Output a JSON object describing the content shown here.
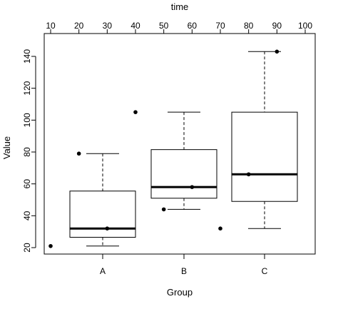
{
  "chart_data": {
    "type": "boxplot",
    "xlabel": "Group",
    "ylabel": "Value",
    "top_axis_label": "time",
    "ylim": [
      16,
      147
    ],
    "yticks": [
      20,
      40,
      60,
      80,
      100,
      120,
      140
    ],
    "top_axis_range": [
      10,
      100
    ],
    "top_ticks": [
      10,
      20,
      30,
      40,
      50,
      60,
      70,
      80,
      90,
      100
    ],
    "groups": [
      {
        "label": "A",
        "whisker_low": 21,
        "q1": 26.5,
        "median": 32,
        "q3": 55.5,
        "whisker_high": 79
      },
      {
        "label": "B",
        "whisker_low": 44,
        "q1": 51,
        "median": 58,
        "q3": 81.5,
        "whisker_high": 105
      },
      {
        "label": "C",
        "whisker_low": 32,
        "q1": 49,
        "median": 66,
        "q3": 105,
        "whisker_high": 143
      }
    ],
    "points_time_axis": [
      {
        "time": 10,
        "value": 21
      },
      {
        "time": 20,
        "value": 79
      },
      {
        "time": 30,
        "value": 32
      },
      {
        "time": 40,
        "value": 105
      },
      {
        "time": 50,
        "value": 44
      },
      {
        "time": 60,
        "value": 58
      },
      {
        "time": 70,
        "value": 32
      },
      {
        "time": 80,
        "value": 66
      },
      {
        "time": 90,
        "value": 143
      }
    ],
    "grid": false,
    "legend": "none"
  }
}
